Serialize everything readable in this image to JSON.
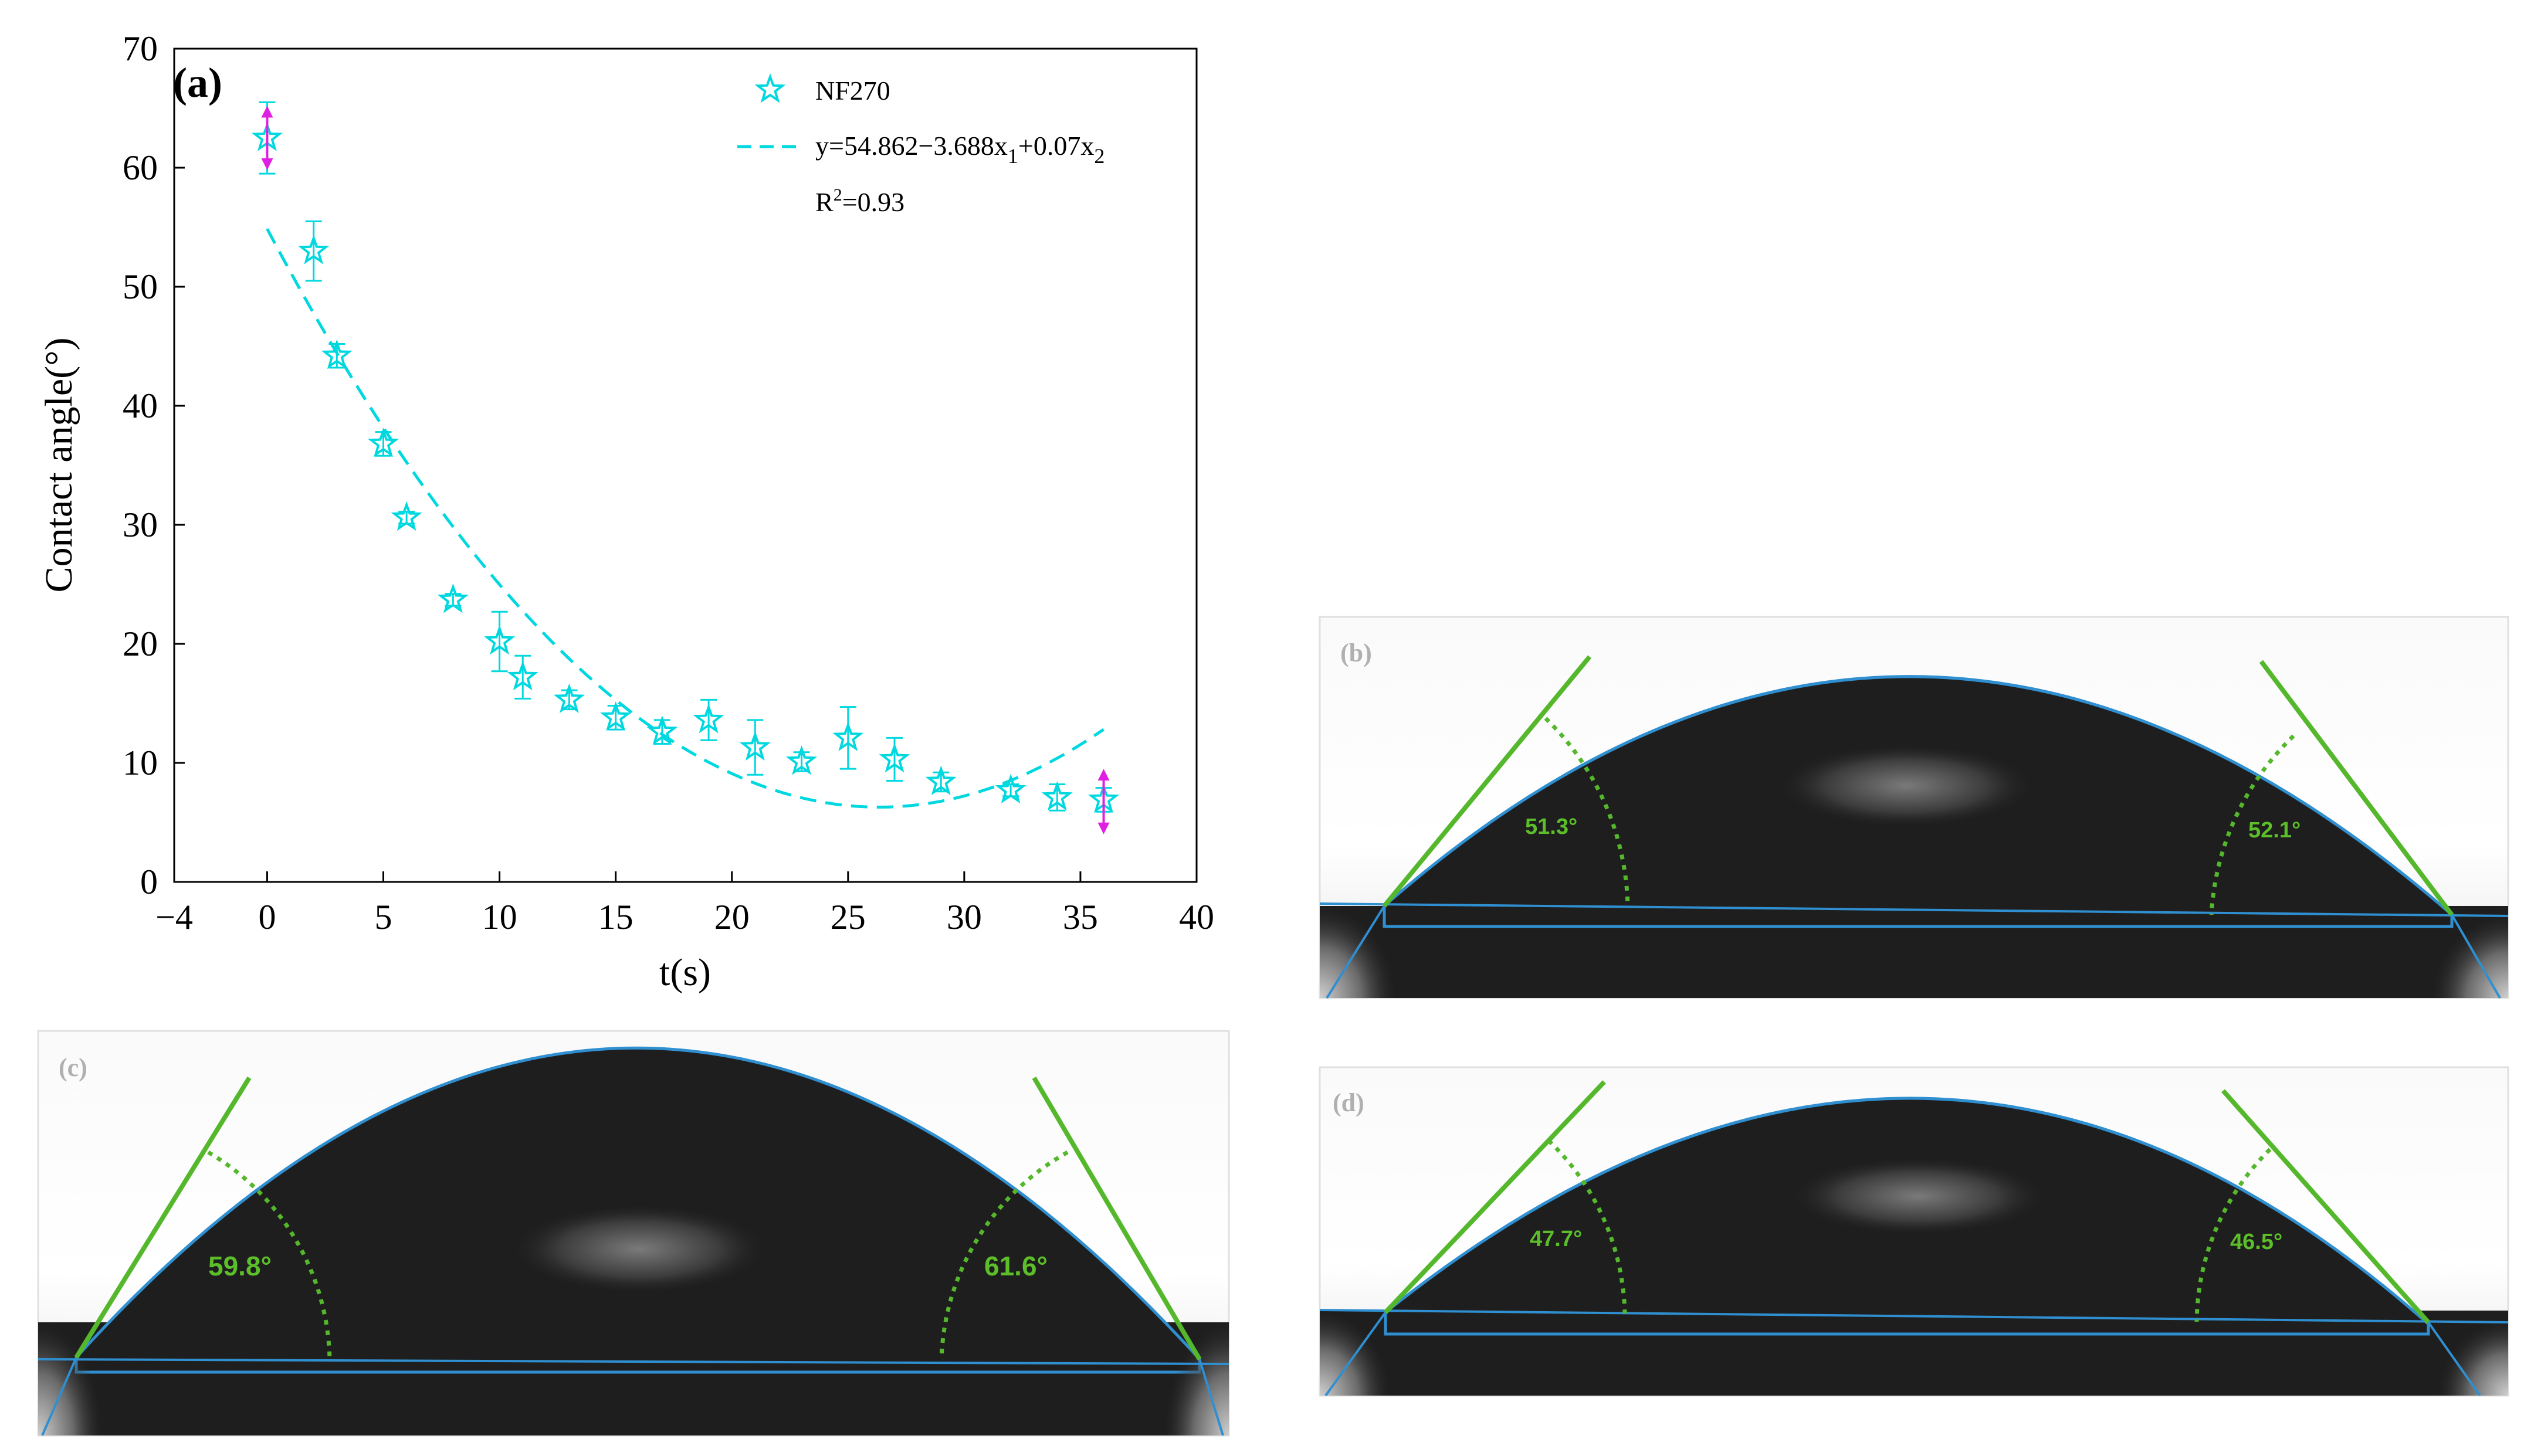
{
  "colors": {
    "series": "#00d8e0",
    "endpoint_arrow": "#e020e0",
    "angle_line": "#55b82c",
    "baseline": "#2a8ccc",
    "angle_text": "#5cbf2a",
    "panel_label": "#b8b8b8"
  },
  "chart_data": {
    "type": "scatter",
    "panel_label": "(a)",
    "xlabel": "t(s)",
    "ylabel": "Contact angle(°)",
    "xlim": [
      -4,
      40
    ],
    "ylim": [
      0,
      70
    ],
    "xticks": [
      -4,
      0,
      5,
      10,
      15,
      20,
      25,
      30,
      35,
      40
    ],
    "xtick_labels": [
      "−4",
      "0",
      "5",
      "10",
      "15",
      "20",
      "25",
      "30",
      "35",
      "40"
    ],
    "yticks": [
      0,
      10,
      20,
      30,
      40,
      50,
      60,
      70
    ],
    "ytick_labels": [
      "0",
      "10",
      "20",
      "30",
      "40",
      "50",
      "60",
      "70"
    ],
    "legend": {
      "series_name": "NF270",
      "fit_label": "y=54.862−3.688x",
      "fit_sub1": "1",
      "fit_mid": "+0.07x",
      "fit_sub2": "2",
      "r2_prefix": "R",
      "r2_sup": "2",
      "r2_value": "=0.93",
      "placement": "top-right"
    },
    "series": [
      {
        "name": "NF270",
        "marker": "star",
        "x": [
          0,
          2,
          3,
          5,
          6,
          8,
          10,
          11,
          13,
          15,
          17,
          19,
          21,
          23,
          25,
          27,
          29,
          32,
          34,
          36
        ],
        "y": [
          62.5,
          53,
          44.2,
          36.8,
          30.6,
          23.7,
          20.2,
          17.2,
          15.3,
          13.8,
          12.6,
          13.6,
          11.3,
          10.1,
          12.1,
          10.3,
          8.4,
          7.7,
          7.1,
          6.9
        ],
        "err": [
          3,
          2.5,
          1,
          1,
          0.5,
          0.5,
          2.5,
          1.8,
          0.8,
          1,
          1,
          1.7,
          2.3,
          0.8,
          2.6,
          1.8,
          0.8,
          0.5,
          1.1,
          1
        ]
      }
    ],
    "fit": {
      "name": "y=54.862−3.688x1+0.07x2",
      "a": 54.862,
      "b": -3.688,
      "c": 0.07,
      "x_range": [
        0,
        36
      ]
    },
    "endpoint_arrows_x": [
      0,
      36
    ],
    "endpoint_arrow_spans": [
      [
        59.8,
        65.2
      ],
      [
        4,
        9.5
      ]
    ]
  },
  "photos": {
    "b": {
      "label": "(b)",
      "left_angle": "51.3°",
      "right_angle": "52.1°"
    },
    "c": {
      "label": "(c)",
      "left_angle": "59.8°",
      "right_angle": "61.6°"
    },
    "d": {
      "label": "(d)",
      "left_angle": "47.7°",
      "right_angle": "46.5°"
    }
  }
}
